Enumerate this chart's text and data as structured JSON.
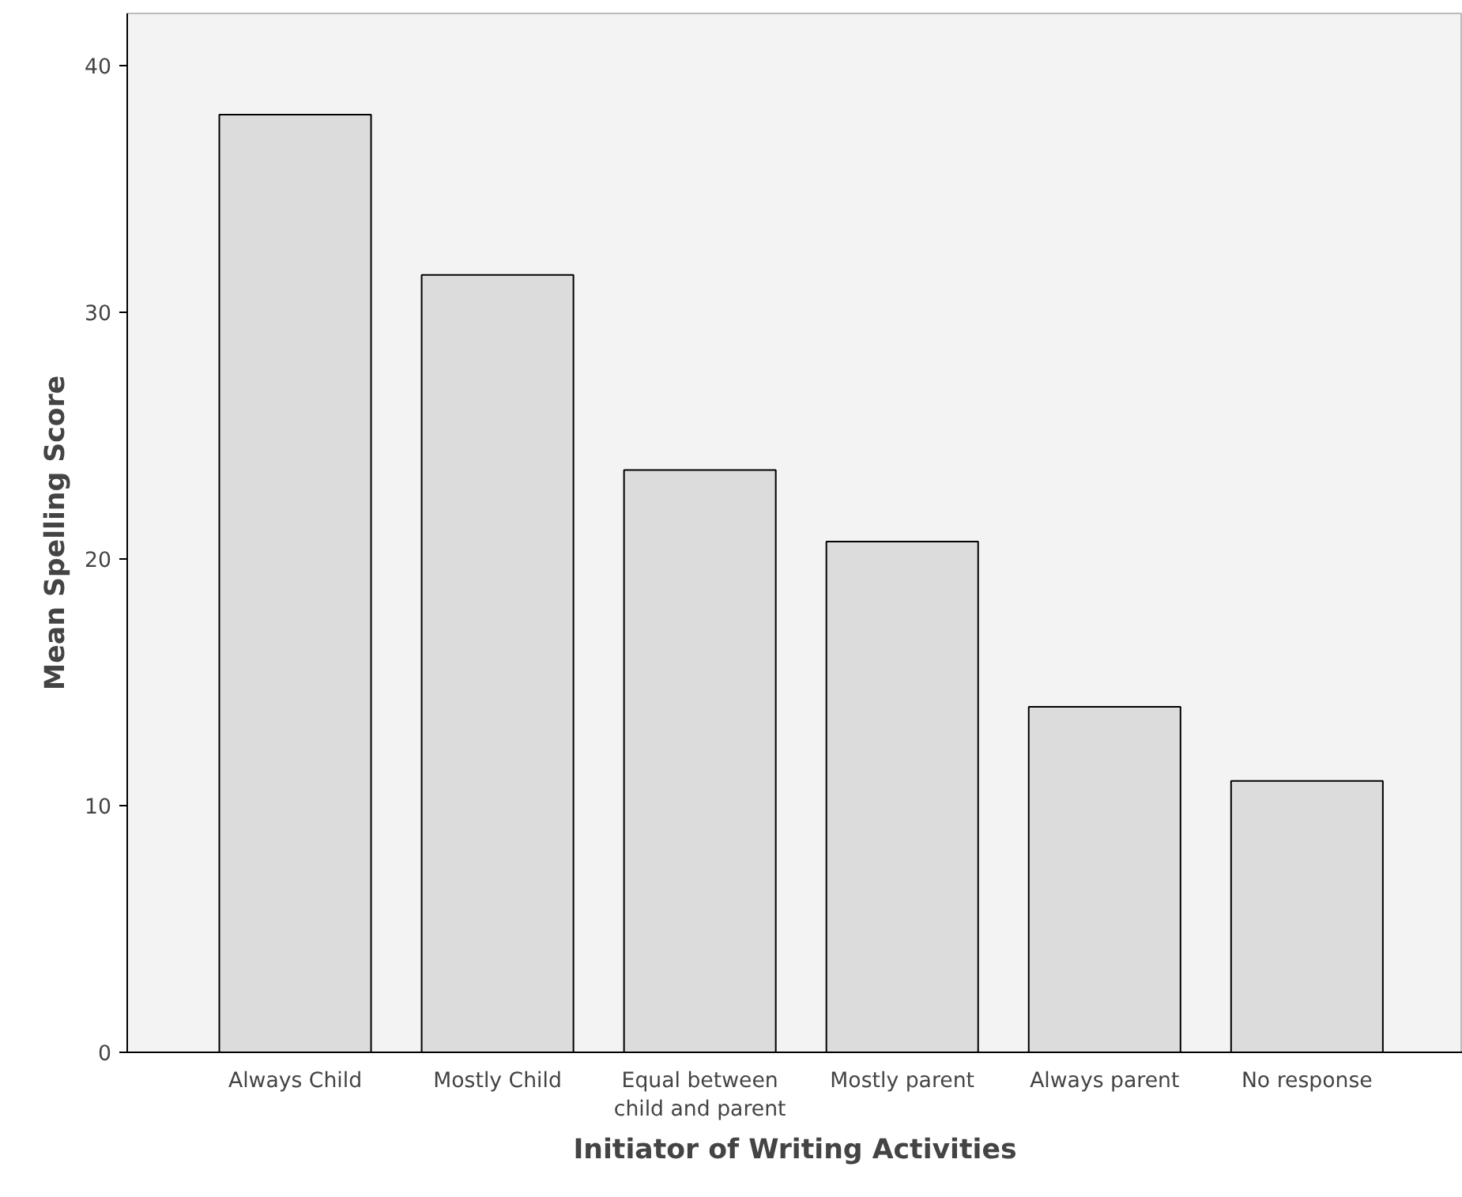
{
  "chart_data": {
    "type": "bar",
    "xlabel": "Initiator of Writing Activities",
    "ylabel": "Mean Spelling Score",
    "categories": [
      "Always Child",
      "Mostly Child",
      "Equal between child and parent",
      "Mostly parent",
      "Always parent",
      "No response"
    ],
    "values": [
      38.0,
      31.5,
      23.6,
      20.7,
      14.0,
      11.0
    ],
    "color": "#dcdcdc",
    "ylim": [
      0,
      42.1
    ],
    "yticks": [
      0,
      10,
      20,
      30,
      40
    ],
    "grid": false
  }
}
